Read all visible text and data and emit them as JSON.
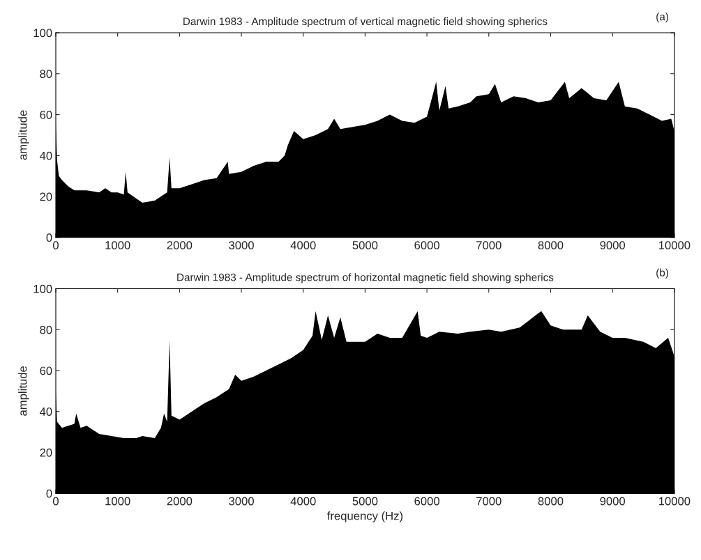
{
  "chart_data": [
    {
      "type": "area",
      "title": "Darwin 1983 - Amplitude spectrum of vertical magnetic field showing spherics",
      "ylabel": "amplitude",
      "annotations": [
        "(a)"
      ],
      "xlim": [
        0,
        10000
      ],
      "xticks": [
        0,
        1000,
        2000,
        3000,
        4000,
        5000,
        6000,
        7000,
        8000,
        9000,
        10000
      ],
      "ylim": [
        0,
        100
      ],
      "yticks": [
        0,
        20,
        40,
        60,
        80,
        100
      ],
      "grid": false,
      "legend": false,
      "series": [
        {
          "color": "#000000",
          "x": [
            0,
            20,
            50,
            100,
            200,
            300,
            500,
            700,
            800,
            900,
            1000,
            1100,
            1130,
            1160,
            1300,
            1400,
            1600,
            1700,
            1800,
            1840,
            1870,
            2000,
            2200,
            2400,
            2600,
            2780,
            2800,
            3000,
            3200,
            3400,
            3600,
            3700,
            3750,
            3850,
            4000,
            4200,
            4400,
            4500,
            4600,
            4800,
            5000,
            5200,
            5400,
            5600,
            5800,
            6000,
            6150,
            6200,
            6300,
            6350,
            6500,
            6700,
            6800,
            7000,
            7100,
            7200,
            7400,
            7600,
            7800,
            8000,
            8230,
            8300,
            8500,
            8700,
            8900,
            9100,
            9200,
            9400,
            9600,
            9800,
            9950,
            10000
          ],
          "values": [
            56,
            38,
            30,
            28,
            25,
            23,
            23,
            22,
            24,
            22,
            22,
            21,
            32,
            22,
            19,
            17,
            18,
            20,
            22,
            39,
            24,
            24,
            26,
            28,
            29,
            37,
            31,
            32,
            35,
            37,
            37,
            40,
            45,
            52,
            48,
            50,
            53,
            58,
            53,
            54,
            55,
            57,
            60,
            57,
            56,
            59,
            76,
            62,
            74,
            63,
            64,
            66,
            69,
            70,
            75,
            66,
            69,
            68,
            66,
            67,
            76,
            68,
            73,
            68,
            67,
            76,
            64,
            63,
            60,
            57,
            58,
            52
          ]
        }
      ]
    },
    {
      "type": "area",
      "title": "Darwin 1983 - Amplitude spectrum of horizontal magnetic field showing spherics",
      "xlabel": "frequency (Hz)",
      "ylabel": "amplitude",
      "annotations": [
        "(b)"
      ],
      "xlim": [
        0,
        10000
      ],
      "xticks": [
        0,
        1000,
        2000,
        3000,
        4000,
        5000,
        6000,
        7000,
        8000,
        9000,
        10000
      ],
      "ylim": [
        0,
        100
      ],
      "yticks": [
        0,
        20,
        40,
        60,
        80,
        100
      ],
      "grid": false,
      "legend": false,
      "series": [
        {
          "color": "#000000",
          "x": [
            0,
            20,
            100,
            300,
            330,
            400,
            500,
            700,
            900,
            1100,
            1300,
            1400,
            1600,
            1700,
            1750,
            1800,
            1840,
            1870,
            2000,
            2200,
            2400,
            2600,
            2800,
            2900,
            3000,
            3200,
            3400,
            3600,
            3800,
            4000,
            4150,
            4200,
            4300,
            4400,
            4500,
            4600,
            4700,
            5000,
            5200,
            5400,
            5600,
            5850,
            5900,
            6000,
            6200,
            6500,
            6700,
            7000,
            7200,
            7500,
            7800,
            7850,
            8000,
            8200,
            8500,
            8600,
            8800,
            9000,
            9200,
            9500,
            9700,
            9900,
            10000
          ],
          "values": [
            50,
            35,
            32,
            34,
            39,
            32,
            33,
            29,
            28,
            27,
            27,
            28,
            27,
            32,
            39,
            35,
            75,
            38,
            36,
            40,
            44,
            47,
            51,
            58,
            55,
            57,
            60,
            63,
            66,
            70,
            77,
            89,
            75,
            87,
            76,
            86,
            74,
            74,
            78,
            76,
            76,
            89,
            77,
            76,
            79,
            78,
            79,
            80,
            79,
            81,
            88,
            89,
            82,
            80,
            80,
            87,
            79,
            76,
            76,
            74,
            71,
            76,
            67
          ]
        }
      ]
    }
  ]
}
